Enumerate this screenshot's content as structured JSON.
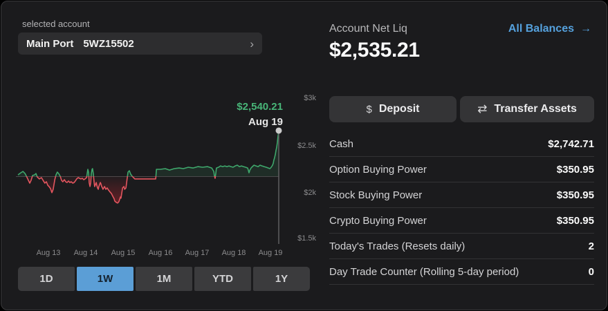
{
  "account": {
    "label": "selected account",
    "name": "Main Port",
    "number": "5WZ15502",
    "chevron_icon": "›"
  },
  "summary": {
    "title": "Account Net Liq",
    "value": "$2,535.21",
    "link_label": "All Balances",
    "link_arrow_icon": "→"
  },
  "actions": {
    "deposit_label": "Deposit",
    "deposit_icon": "$",
    "transfer_label": "Transfer Assets",
    "transfer_icon": "⇄"
  },
  "ranges": {
    "options": [
      "1D",
      "1W",
      "1M",
      "YTD",
      "1Y"
    ],
    "active": "1W"
  },
  "balances": {
    "rows": [
      {
        "label": "Cash",
        "value": "$2,742.71"
      },
      {
        "label": "Option Buying Power",
        "value": "$350.95"
      },
      {
        "label": "Stock Buying Power",
        "value": "$350.95"
      },
      {
        "label": "Crypto Buying Power",
        "value": "$350.95"
      },
      {
        "label": "Today's Trades (Resets daily)",
        "value": "2"
      },
      {
        "label": "Day Trade Counter (Rolling 5-day period)",
        "value": "0"
      }
    ]
  },
  "chart_data": {
    "type": "area",
    "title": "Account Net Liq history (1W)",
    "tooltip": {
      "value": "$2,540.21",
      "date": "Aug 19"
    },
    "y_ticks": [
      {
        "label": "$3k",
        "value": 3000
      },
      {
        "label": "$2.5k",
        "value": 2500
      },
      {
        "label": "$2k",
        "value": 2000
      },
      {
        "label": "$1.5k",
        "value": 1500
      }
    ],
    "x_labels": [
      "Aug 13",
      "Aug 14",
      "Aug 15",
      "Aug 16",
      "Aug 17",
      "Aug 18",
      "Aug 19"
    ],
    "ylim": [
      1500,
      3000
    ],
    "baseline_value": 2169,
    "end_value": 2540.21,
    "colors": {
      "up": "#3fa86c",
      "up_text": "#48b578",
      "down": "#e4565f",
      "baseline": "#4a4a4c",
      "crosshair": "#606062",
      "dot": "#cbcbcb",
      "tick_text": "#8b8b8d",
      "date_text": "#e6e6e6"
    },
    "points": [
      [
        0,
        2180
      ],
      [
        0.011,
        2197
      ],
      [
        0.019,
        2208
      ],
      [
        0.027,
        2191
      ],
      [
        0.034,
        2163
      ],
      [
        0.04,
        2135
      ],
      [
        0.045,
        2113
      ],
      [
        0.05,
        2135
      ],
      [
        0.056,
        2175
      ],
      [
        0.064,
        2180
      ],
      [
        0.069,
        2191
      ],
      [
        0.074,
        2163
      ],
      [
        0.082,
        2147
      ],
      [
        0.09,
        2158
      ],
      [
        0.098,
        2130
      ],
      [
        0.103,
        2113
      ],
      [
        0.109,
        2124
      ],
      [
        0.114,
        2096
      ],
      [
        0.119,
        2085
      ],
      [
        0.125,
        2068
      ],
      [
        0.13,
        2035
      ],
      [
        0.135,
        2063
      ],
      [
        0.141,
        2141
      ],
      [
        0.146,
        2180
      ],
      [
        0.151,
        2203
      ],
      [
        0.156,
        2191
      ],
      [
        0.162,
        2169
      ],
      [
        0.167,
        2135
      ],
      [
        0.172,
        2124
      ],
      [
        0.178,
        2141
      ],
      [
        0.183,
        2124
      ],
      [
        0.188,
        2118
      ],
      [
        0.194,
        2130
      ],
      [
        0.199,
        2118
      ],
      [
        0.204,
        2124
      ],
      [
        0.21,
        2113
      ],
      [
        0.215,
        2118
      ],
      [
        0.22,
        2130
      ],
      [
        0.225,
        2147
      ],
      [
        0.231,
        2158
      ],
      [
        0.236,
        2152
      ],
      [
        0.241,
        2147
      ],
      [
        0.247,
        2152
      ],
      [
        0.252,
        2141
      ],
      [
        0.257,
        2147
      ],
      [
        0.263,
        2158
      ],
      [
        0.265,
        2186
      ],
      [
        0.268,
        2225
      ],
      [
        0.271,
        2197
      ],
      [
        0.273,
        2118
      ],
      [
        0.276,
        2085
      ],
      [
        0.279,
        2118
      ],
      [
        0.281,
        2186
      ],
      [
        0.284,
        2225
      ],
      [
        0.286,
        2231
      ],
      [
        0.289,
        2186
      ],
      [
        0.292,
        2118
      ],
      [
        0.294,
        2085
      ],
      [
        0.297,
        2102
      ],
      [
        0.3,
        2118
      ],
      [
        0.302,
        2096
      ],
      [
        0.305,
        2074
      ],
      [
        0.308,
        2063
      ],
      [
        0.31,
        2085
      ],
      [
        0.313,
        2102
      ],
      [
        0.316,
        2118
      ],
      [
        0.318,
        2107
      ],
      [
        0.321,
        2085
      ],
      [
        0.324,
        2074
      ],
      [
        0.326,
        2063
      ],
      [
        0.332,
        2085
      ],
      [
        0.337,
        2063
      ],
      [
        0.342,
        2074
      ],
      [
        0.347,
        2057
      ],
      [
        0.353,
        2040
      ],
      [
        0.358,
        2029
      ],
      [
        0.363,
        2007
      ],
      [
        0.369,
        1984
      ],
      [
        0.371,
        1967
      ],
      [
        0.377,
        1956
      ],
      [
        0.382,
        1951
      ],
      [
        0.387,
        1962
      ],
      [
        0.393,
        2001
      ],
      [
        0.395,
        1990
      ],
      [
        0.401,
        2074
      ],
      [
        0.406,
        2085
      ],
      [
        0.409,
        2063
      ],
      [
        0.414,
        2074
      ],
      [
        0.419,
        2158
      ],
      [
        0.422,
        2203
      ],
      [
        0.427,
        2214
      ],
      [
        0.432,
        2186
      ],
      [
        0.438,
        2169
      ],
      [
        0.443,
        2158
      ],
      [
        0.448,
        2147
      ],
      [
        0.467,
        2147
      ],
      [
        0.493,
        2147
      ],
      [
        0.528,
        2147
      ],
      [
        0.531,
        2225
      ],
      [
        0.546,
        2225
      ],
      [
        0.565,
        2231
      ],
      [
        0.581,
        2219
      ],
      [
        0.599,
        2231
      ],
      [
        0.618,
        2236
      ],
      [
        0.634,
        2231
      ],
      [
        0.653,
        2242
      ],
      [
        0.671,
        2236
      ],
      [
        0.69,
        2247
      ],
      [
        0.708,
        2242
      ],
      [
        0.727,
        2247
      ],
      [
        0.743,
        2236
      ],
      [
        0.751,
        2208
      ],
      [
        0.753,
        2175
      ],
      [
        0.756,
        2152
      ],
      [
        0.759,
        2197
      ],
      [
        0.761,
        2236
      ],
      [
        0.769,
        2242
      ],
      [
        0.777,
        2253
      ],
      [
        0.785,
        2247
      ],
      [
        0.793,
        2253
      ],
      [
        0.801,
        2247
      ],
      [
        0.809,
        2253
      ],
      [
        0.817,
        2247
      ],
      [
        0.825,
        2242
      ],
      [
        0.833,
        2253
      ],
      [
        0.841,
        2259
      ],
      [
        0.849,
        2247
      ],
      [
        0.857,
        2253
      ],
      [
        0.865,
        2247
      ],
      [
        0.873,
        2242
      ],
      [
        0.881,
        2236
      ],
      [
        0.886,
        2197
      ],
      [
        0.889,
        2219
      ],
      [
        0.894,
        2236
      ],
      [
        0.899,
        2247
      ],
      [
        0.905,
        2259
      ],
      [
        0.913,
        2253
      ],
      [
        0.921,
        2247
      ],
      [
        0.928,
        2259
      ],
      [
        0.936,
        2253
      ],
      [
        0.944,
        2247
      ],
      [
        0.952,
        2242
      ],
      [
        0.96,
        2236
      ],
      [
        0.966,
        2231
      ],
      [
        0.971,
        2242
      ],
      [
        0.976,
        2259
      ],
      [
        0.979,
        2275
      ],
      [
        0.981,
        2298
      ],
      [
        0.984,
        2320
      ],
      [
        0.987,
        2348
      ],
      [
        0.989,
        2376
      ],
      [
        0.992,
        2404
      ],
      [
        0.995,
        2449
      ],
      [
        0.997,
        2494
      ],
      [
        1,
        2540.21
      ]
    ]
  }
}
